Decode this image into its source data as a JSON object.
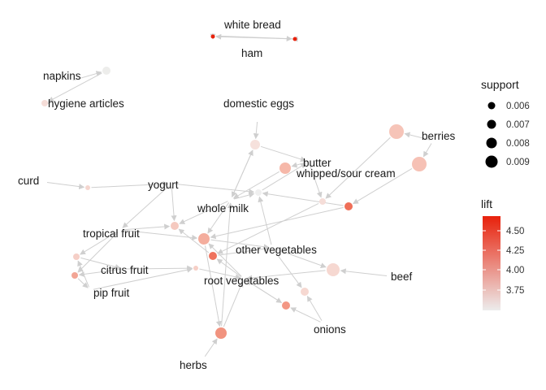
{
  "graph": {
    "nodes": [
      {
        "id": "white_bread",
        "label": "white bread"
      },
      {
        "id": "ham",
        "label": "ham"
      },
      {
        "id": "napkins",
        "label": "napkins"
      },
      {
        "id": "hygiene_articles",
        "label": "hygiene articles"
      },
      {
        "id": "domestic_eggs",
        "label": "domestic eggs"
      },
      {
        "id": "berries",
        "label": "berries"
      },
      {
        "id": "curd",
        "label": "curd"
      },
      {
        "id": "yogurt",
        "label": "yogurt"
      },
      {
        "id": "butter",
        "label": "butter"
      },
      {
        "id": "whipped_sour_cream",
        "label": "whipped/sour cream"
      },
      {
        "id": "whole_milk",
        "label": "whole milk"
      },
      {
        "id": "tropical_fruit",
        "label": "tropical fruit"
      },
      {
        "id": "other_vegetables",
        "label": "other vegetables"
      },
      {
        "id": "citrus_fruit",
        "label": "citrus fruit"
      },
      {
        "id": "beef",
        "label": "beef"
      },
      {
        "id": "root_vegetables",
        "label": "root vegetables"
      },
      {
        "id": "pip_fruit",
        "label": "pip fruit"
      },
      {
        "id": "onions",
        "label": "onions"
      },
      {
        "id": "herbs",
        "label": "herbs"
      }
    ]
  },
  "legend": {
    "support": {
      "title": "support",
      "values": [
        "0.006",
        "0.007",
        "0.008",
        "0.009"
      ]
    },
    "lift": {
      "title": "lift",
      "ticks": [
        "4.50",
        "4.25",
        "4.00",
        "3.75"
      ],
      "color_low": "#ececec",
      "color_high": "#e8210b"
    }
  }
}
